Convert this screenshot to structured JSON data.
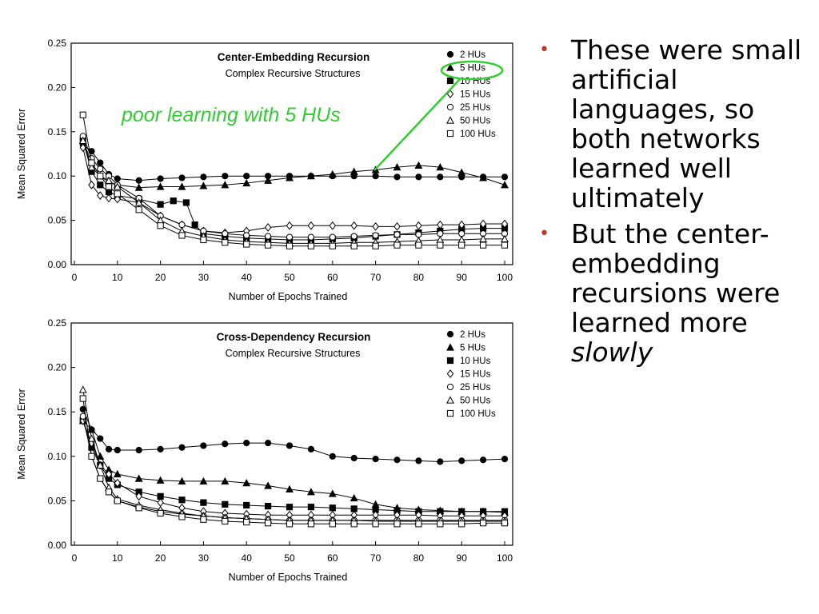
{
  "slide": {
    "annotation": "poor learning with 5 HUs",
    "annotation_color": "#33cc33",
    "bullet_color": "#c0392b",
    "bullets": [
      {
        "text": "These were small artificial languages, so both networks learned well ultimately",
        "emphasis": ""
      },
      {
        "text": "But the center-embedding recursions were learned more",
        "emphasis": "slowly"
      }
    ]
  },
  "chart_data": [
    {
      "type": "scatter",
      "title": "Center-Embedding Recursion",
      "subtitle": "Complex Recursive Structures",
      "xlabel": "Number of Epochs Trained",
      "ylabel": "Mean Squared Error",
      "xlim": [
        0,
        100
      ],
      "ylim": [
        0,
        0.25
      ],
      "xticks": [
        "0",
        "10",
        "20",
        "30",
        "40",
        "50",
        "60",
        "70",
        "80",
        "90",
        "100"
      ],
      "yticks": [
        "0.00",
        "0.05",
        "0.10",
        "0.15",
        "0.20",
        "0.25"
      ],
      "legend_position": "top-right",
      "series": [
        {
          "name": "2 HUs",
          "marker": "circle-filled",
          "x": [
            2,
            4,
            6,
            8,
            10,
            15,
            20,
            25,
            30,
            35,
            40,
            45,
            50,
            55,
            60,
            65,
            70,
            75,
            80,
            85,
            90,
            95,
            100
          ],
          "y": [
            0.135,
            0.128,
            0.115,
            0.102,
            0.097,
            0.095,
            0.097,
            0.098,
            0.099,
            0.1,
            0.1,
            0.1,
            0.1,
            0.1,
            0.1,
            0.1,
            0.1,
            0.099,
            0.099,
            0.099,
            0.099,
            0.099,
            0.099
          ]
        },
        {
          "name": "5 HUs",
          "marker": "triangle-filled",
          "x": [
            2,
            4,
            6,
            8,
            10,
            15,
            20,
            25,
            30,
            35,
            40,
            45,
            50,
            55,
            60,
            65,
            70,
            75,
            80,
            85,
            90,
            95,
            100
          ],
          "y": [
            0.14,
            0.115,
            0.1,
            0.093,
            0.09,
            0.087,
            0.088,
            0.088,
            0.089,
            0.09,
            0.092,
            0.095,
            0.098,
            0.1,
            0.102,
            0.105,
            0.107,
            0.11,
            0.112,
            0.11,
            0.104,
            0.098,
            0.09
          ]
        },
        {
          "name": "10 HUs",
          "marker": "square-filled",
          "x": [
            2,
            4,
            6,
            8,
            10,
            15,
            20,
            23,
            26,
            28,
            30,
            35,
            40,
            45,
            50,
            55,
            60,
            65,
            70,
            75,
            80,
            85,
            90,
            95,
            100
          ],
          "y": [
            0.14,
            0.105,
            0.09,
            0.082,
            0.078,
            0.074,
            0.068,
            0.072,
            0.07,
            0.045,
            0.035,
            0.032,
            0.03,
            0.029,
            0.028,
            0.028,
            0.029,
            0.03,
            0.032,
            0.034,
            0.036,
            0.038,
            0.04,
            0.041,
            0.041
          ]
        },
        {
          "name": "15 HUs",
          "marker": "diamond-open",
          "x": [
            2,
            4,
            6,
            8,
            10,
            15,
            20,
            25,
            30,
            35,
            40,
            45,
            50,
            55,
            60,
            65,
            70,
            75,
            80,
            85,
            90,
            95,
            100
          ],
          "y": [
            0.132,
            0.09,
            0.078,
            0.075,
            0.074,
            0.07,
            0.055,
            0.045,
            0.038,
            0.036,
            0.038,
            0.042,
            0.044,
            0.044,
            0.044,
            0.044,
            0.043,
            0.043,
            0.044,
            0.045,
            0.045,
            0.046,
            0.046
          ]
        },
        {
          "name": "25 HUs",
          "marker": "circle-open",
          "x": [
            2,
            4,
            6,
            8,
            10,
            15,
            20,
            25,
            30,
            35,
            40,
            45,
            50,
            55,
            60,
            65,
            70,
            75,
            80,
            85,
            90,
            95,
            100
          ],
          "y": [
            0.145,
            0.12,
            0.108,
            0.1,
            0.09,
            0.075,
            0.055,
            0.045,
            0.038,
            0.035,
            0.033,
            0.032,
            0.031,
            0.031,
            0.031,
            0.032,
            0.033,
            0.034,
            0.034,
            0.035,
            0.035,
            0.035,
            0.035
          ]
        },
        {
          "name": "50 HUs",
          "marker": "triangle-open",
          "x": [
            2,
            4,
            6,
            8,
            10,
            15,
            20,
            25,
            30,
            35,
            40,
            45,
            50,
            55,
            60,
            65,
            70,
            75,
            80,
            85,
            90,
            95,
            100
          ],
          "y": [
            0.14,
            0.11,
            0.1,
            0.095,
            0.088,
            0.07,
            0.05,
            0.038,
            0.032,
            0.028,
            0.026,
            0.025,
            0.024,
            0.024,
            0.024,
            0.025,
            0.025,
            0.026,
            0.027,
            0.028,
            0.028,
            0.029,
            0.029
          ]
        },
        {
          "name": "100 HUs",
          "marker": "square-open",
          "x": [
            2,
            4,
            6,
            8,
            10,
            15,
            20,
            25,
            30,
            35,
            40,
            45,
            50,
            55,
            60,
            65,
            70,
            75,
            80,
            85,
            90,
            95,
            100
          ],
          "y": [
            0.169,
            0.115,
            0.1,
            0.088,
            0.08,
            0.062,
            0.044,
            0.033,
            0.028,
            0.025,
            0.023,
            0.022,
            0.021,
            0.021,
            0.021,
            0.021,
            0.021,
            0.022,
            0.022,
            0.022,
            0.022,
            0.022,
            0.022
          ]
        }
      ]
    },
    {
      "type": "scatter",
      "title": "Cross-Dependency Recursion",
      "subtitle": "Complex Recursive Structures",
      "xlabel": "Number of Epochs Trained",
      "ylabel": "Mean Squared Error",
      "xlim": [
        0,
        100
      ],
      "ylim": [
        0,
        0.25
      ],
      "xticks": [
        "0",
        "10",
        "20",
        "30",
        "40",
        "50",
        "60",
        "70",
        "80",
        "90",
        "100"
      ],
      "yticks": [
        "0.00",
        "0.05",
        "0.10",
        "0.15",
        "0.20",
        "0.25"
      ],
      "legend_position": "top-right",
      "series": [
        {
          "name": "2 HUs",
          "marker": "circle-filled",
          "x": [
            2,
            4,
            6,
            8,
            10,
            15,
            20,
            25,
            30,
            35,
            40,
            45,
            50,
            55,
            60,
            65,
            70,
            75,
            80,
            85,
            90,
            95,
            100
          ],
          "y": [
            0.153,
            0.13,
            0.12,
            0.108,
            0.107,
            0.107,
            0.108,
            0.11,
            0.112,
            0.114,
            0.115,
            0.115,
            0.112,
            0.108,
            0.1,
            0.098,
            0.097,
            0.096,
            0.095,
            0.094,
            0.095,
            0.096,
            0.097
          ]
        },
        {
          "name": "5 HUs",
          "marker": "triangle-filled",
          "x": [
            2,
            4,
            6,
            8,
            10,
            15,
            20,
            25,
            30,
            35,
            40,
            45,
            50,
            55,
            60,
            65,
            70,
            75,
            80,
            85,
            90,
            95,
            100
          ],
          "y": [
            0.14,
            0.13,
            0.1,
            0.085,
            0.08,
            0.075,
            0.073,
            0.072,
            0.072,
            0.072,
            0.07,
            0.067,
            0.063,
            0.06,
            0.058,
            0.053,
            0.046,
            0.042,
            0.04,
            0.039,
            0.038,
            0.038,
            0.037
          ]
        },
        {
          "name": "10 HUs",
          "marker": "square-filled",
          "x": [
            2,
            4,
            6,
            8,
            10,
            15,
            20,
            25,
            30,
            35,
            40,
            45,
            50,
            55,
            60,
            65,
            70,
            75,
            80,
            85,
            90,
            95,
            100
          ],
          "y": [
            0.14,
            0.11,
            0.09,
            0.075,
            0.068,
            0.06,
            0.055,
            0.051,
            0.048,
            0.046,
            0.045,
            0.044,
            0.043,
            0.043,
            0.042,
            0.041,
            0.04,
            0.039,
            0.038,
            0.038,
            0.038,
            0.038,
            0.038
          ]
        },
        {
          "name": "15 HUs",
          "marker": "diamond-open",
          "x": [
            2,
            4,
            6,
            8,
            10,
            15,
            20,
            25,
            30,
            35,
            40,
            45,
            50,
            55,
            60,
            65,
            70,
            75,
            80,
            85,
            90,
            95,
            100
          ],
          "y": [
            0.14,
            0.115,
            0.09,
            0.08,
            0.07,
            0.055,
            0.048,
            0.042,
            0.038,
            0.036,
            0.035,
            0.034,
            0.034,
            0.034,
            0.034,
            0.034,
            0.034,
            0.034,
            0.034,
            0.033,
            0.033,
            0.033,
            0.033
          ]
        },
        {
          "name": "25 HUs",
          "marker": "circle-open",
          "x": [
            2,
            4,
            6,
            8,
            10,
            15,
            20,
            25,
            30,
            35,
            40,
            45,
            50,
            55,
            60,
            65,
            70,
            75,
            80,
            85,
            90,
            95,
            100
          ],
          "y": [
            0.145,
            0.1,
            0.075,
            0.06,
            0.05,
            0.043,
            0.038,
            0.035,
            0.033,
            0.031,
            0.03,
            0.029,
            0.028,
            0.028,
            0.028,
            0.028,
            0.028,
            0.028,
            0.028,
            0.028,
            0.028,
            0.028,
            0.028
          ]
        },
        {
          "name": "50 HUs",
          "marker": "triangle-open",
          "x": [
            2,
            4,
            6,
            8,
            10,
            15,
            20,
            25,
            30,
            35,
            40,
            45,
            50,
            55,
            60,
            65,
            70,
            75,
            80,
            85,
            90,
            95,
            100
          ],
          "y": [
            0.175,
            0.12,
            0.09,
            0.065,
            0.052,
            0.045,
            0.04,
            0.036,
            0.033,
            0.031,
            0.03,
            0.029,
            0.028,
            0.028,
            0.028,
            0.028,
            0.027,
            0.027,
            0.027,
            0.027,
            0.027,
            0.027,
            0.027
          ]
        },
        {
          "name": "100 HUs",
          "marker": "square-open",
          "x": [
            2,
            4,
            6,
            8,
            10,
            15,
            20,
            25,
            30,
            35,
            40,
            45,
            50,
            55,
            60,
            65,
            70,
            75,
            80,
            85,
            90,
            95,
            100
          ],
          "y": [
            0.165,
            0.1,
            0.075,
            0.06,
            0.05,
            0.042,
            0.036,
            0.032,
            0.029,
            0.027,
            0.026,
            0.025,
            0.024,
            0.024,
            0.024,
            0.024,
            0.024,
            0.024,
            0.024,
            0.024,
            0.024,
            0.025,
            0.025
          ]
        }
      ]
    }
  ]
}
